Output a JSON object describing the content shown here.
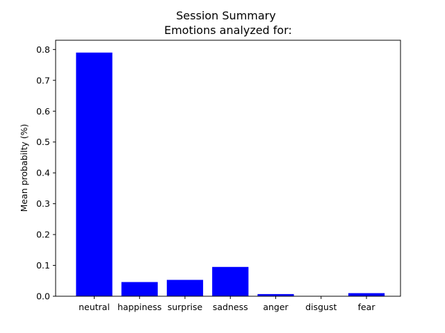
{
  "chart_data": {
    "type": "bar",
    "title": "Session Summary",
    "subtitle": "Emotions analyzed for:",
    "xlabel": "",
    "ylabel": "Mean probabilty (%)",
    "categories": [
      "neutral",
      "happiness",
      "surprise",
      "sadness",
      "anger",
      "disgust",
      "fear"
    ],
    "values": [
      0.79,
      0.046,
      0.053,
      0.095,
      0.007,
      0.0,
      0.01
    ],
    "ylim": [
      0.0,
      0.83
    ],
    "yticks": [
      0.0,
      0.1,
      0.2,
      0.3,
      0.4,
      0.5,
      0.6,
      0.7,
      0.8
    ],
    "ytick_labels": [
      "0.0",
      "0.1",
      "0.2",
      "0.3",
      "0.4",
      "0.5",
      "0.6",
      "0.7",
      "0.8"
    ],
    "bar_color": "#0000ff",
    "grid": false,
    "legend": "none"
  }
}
